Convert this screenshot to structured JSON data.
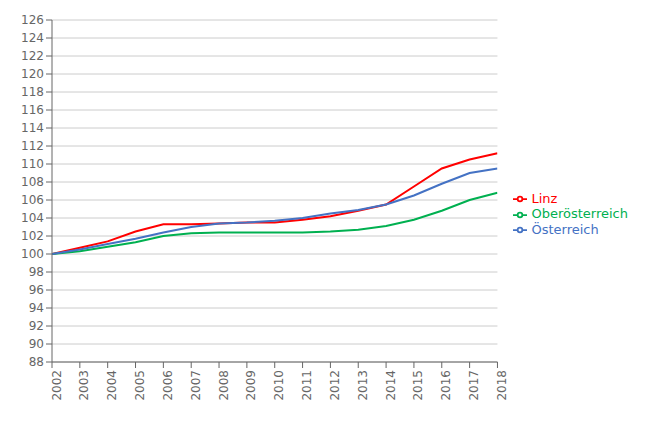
{
  "chart_data": {
    "type": "line",
    "x": [
      2002,
      2003,
      2004,
      2005,
      2006,
      2007,
      2008,
      2009,
      2010,
      2011,
      2012,
      2013,
      2014,
      2015,
      2016,
      2017,
      2018
    ],
    "series": [
      {
        "name": "Linz",
        "color": "#ff0000",
        "values": [
          100.0,
          100.7,
          101.4,
          102.5,
          103.3,
          103.3,
          103.4,
          103.5,
          103.5,
          103.8,
          104.2,
          104.8,
          105.5,
          107.5,
          109.5,
          110.5,
          111.2
        ]
      },
      {
        "name": "Oberösterreich",
        "color": "#00b050",
        "values": [
          100.0,
          100.3,
          100.8,
          101.3,
          102.0,
          102.3,
          102.4,
          102.4,
          102.4,
          102.4,
          102.5,
          102.7,
          103.1,
          103.8,
          104.8,
          106.0,
          106.8
        ]
      },
      {
        "name": "Österreich",
        "color": "#4472c4",
        "values": [
          100.0,
          100.5,
          101.1,
          101.7,
          102.4,
          103.0,
          103.4,
          103.5,
          103.7,
          104.0,
          104.5,
          104.9,
          105.5,
          106.5,
          107.8,
          109.0,
          109.5
        ]
      }
    ],
    "xlim": [
      2002,
      2018
    ],
    "xticks": [
      2002,
      2003,
      2004,
      2005,
      2006,
      2007,
      2008,
      2009,
      2010,
      2011,
      2012,
      2013,
      2014,
      2015,
      2016,
      2017,
      2018
    ],
    "ylim": [
      88,
      126
    ],
    "yticks": [
      88,
      90,
      92,
      94,
      96,
      98,
      100,
      102,
      104,
      106,
      108,
      110,
      112,
      114,
      116,
      118,
      120,
      122,
      124,
      126
    ],
    "grid": "y",
    "legend": "right"
  }
}
